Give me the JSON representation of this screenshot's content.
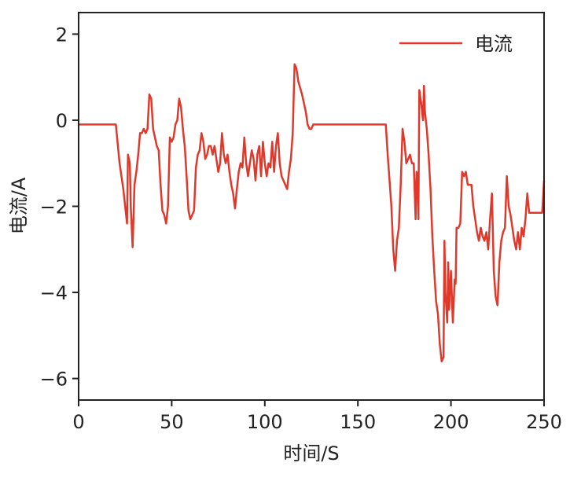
{
  "chart_data": {
    "type": "line",
    "x_label": "时间/S",
    "y_label": "电流/A",
    "xlim": [
      0,
      250
    ],
    "ylim": [
      -6.5,
      2.5
    ],
    "xticks": [
      0,
      50,
      100,
      150,
      200,
      250
    ],
    "yticks": [
      {
        "value": -6,
        "label": "−6"
      },
      {
        "value": -4,
        "label": "−4"
      },
      {
        "value": -2,
        "label": "−2"
      },
      0,
      2
    ],
    "legend": "upper right",
    "x": [
      0,
      20,
      22,
      24,
      26,
      26.5,
      27.5,
      28,
      29,
      30,
      31,
      32,
      33,
      34,
      35,
      36,
      37,
      38,
      39,
      40,
      41,
      42,
      43,
      44,
      45,
      46,
      47,
      48,
      49,
      50,
      51,
      52,
      53,
      54,
      55,
      56,
      57,
      58,
      59,
      60,
      61,
      62,
      63,
      64,
      65,
      66,
      67,
      68,
      69,
      70,
      71,
      72,
      73,
      74,
      75,
      76,
      77,
      78,
      79,
      80,
      81,
      82,
      83,
      84,
      85,
      86,
      87,
      88,
      89,
      90,
      91,
      92,
      93,
      94,
      95,
      96,
      97,
      98,
      99,
      100,
      101,
      102,
      103,
      104,
      105,
      106,
      107,
      108,
      109,
      110,
      111,
      112,
      113,
      114,
      115,
      116,
      117,
      118,
      120,
      122,
      123,
      124,
      125,
      126,
      165,
      166,
      168,
      169,
      170,
      171,
      172,
      173,
      174,
      175,
      176,
      177,
      178,
      179,
      180,
      181,
      181.5,
      182,
      182.5,
      183,
      184,
      185,
      185.5,
      186,
      187,
      188,
      189,
      190,
      191,
      192,
      193,
      194,
      195,
      196,
      196.5,
      197,
      198,
      198.5,
      199,
      200,
      201,
      202,
      202.5,
      203,
      204,
      205,
      206,
      207,
      208,
      209,
      210,
      211,
      212,
      213,
      214,
      215,
      216,
      217,
      218,
      219,
      220,
      221,
      222,
      223,
      224,
      225,
      226,
      227,
      228,
      229,
      230,
      231,
      232,
      233,
      234,
      235,
      236,
      237,
      238,
      239,
      240,
      241,
      242,
      249,
      250
    ],
    "series": [
      {
        "name": "电流",
        "color": "#e0392b",
        "values": [
          -0.1,
          -0.1,
          -1.0,
          -1.6,
          -2.4,
          -0.8,
          -1.0,
          -2.0,
          -2.95,
          -1.5,
          -1.2,
          -0.8,
          -0.3,
          -0.3,
          -0.2,
          -0.3,
          -0.2,
          0.6,
          0.5,
          -0.2,
          -0.4,
          -0.6,
          -0.7,
          -1.5,
          -2.1,
          -2.2,
          -2.4,
          -2.0,
          -0.4,
          -0.5,
          -0.4,
          -0.1,
          0.0,
          0.5,
          0.3,
          -0.2,
          -0.6,
          -1.3,
          -2.1,
          -2.3,
          -2.2,
          -2.1,
          -1.1,
          -0.8,
          -0.7,
          -0.3,
          -0.5,
          -0.9,
          -0.8,
          -0.6,
          -0.6,
          -0.8,
          -0.6,
          -0.9,
          -1.2,
          -1.0,
          -0.3,
          -0.8,
          -1.0,
          -0.8,
          -1.2,
          -1.5,
          -1.7,
          -2.05,
          -1.6,
          -1.2,
          -1.0,
          -1.1,
          -0.4,
          -1.0,
          -1.3,
          -1.0,
          -0.7,
          -0.9,
          -1.4,
          -0.8,
          -0.6,
          -1.3,
          -0.5,
          -1.0,
          -1.3,
          -1.0,
          -1.1,
          -0.5,
          -1.2,
          -0.6,
          -0.3,
          -1.0,
          -1.3,
          -1.4,
          -1.5,
          -1.6,
          -1.2,
          -0.9,
          -0.3,
          1.3,
          1.2,
          0.9,
          0.6,
          0.2,
          -0.1,
          -0.2,
          -0.2,
          -0.1,
          -0.1,
          -0.8,
          -2.0,
          -3.0,
          -3.5,
          -2.8,
          -2.5,
          -1.5,
          -0.2,
          -0.5,
          -1.0,
          -0.9,
          -0.8,
          -1.0,
          -1.0,
          -2.3,
          -1.2,
          -1.3,
          -2.3,
          0.7,
          0.4,
          0.0,
          0.8,
          0.2,
          -0.2,
          -0.8,
          -1.6,
          -2.7,
          -3.5,
          -4.2,
          -4.5,
          -5.2,
          -5.6,
          -5.5,
          -2.8,
          -4.0,
          -4.7,
          -3.3,
          -4.4,
          -3.5,
          -4.7,
          -3.7,
          -3.8,
          -2.5,
          -2.5,
          -2.4,
          -1.2,
          -1.3,
          -1.2,
          -1.5,
          -1.5,
          -1.5,
          -2.0,
          -2.3,
          -2.6,
          -2.8,
          -2.5,
          -2.7,
          -2.8,
          -2.6,
          -3.0,
          -2.3,
          -1.7,
          -3.5,
          -4.1,
          -4.3,
          -3.3,
          -2.8,
          -2.6,
          -2.5,
          -1.3,
          -2.0,
          -2.2,
          -2.5,
          -2.8,
          -3.0,
          -2.6,
          -3.0,
          -2.5,
          -2.7,
          -2.3,
          -1.7,
          -2.15,
          -2.15,
          -1.4
        ]
      }
    ]
  }
}
